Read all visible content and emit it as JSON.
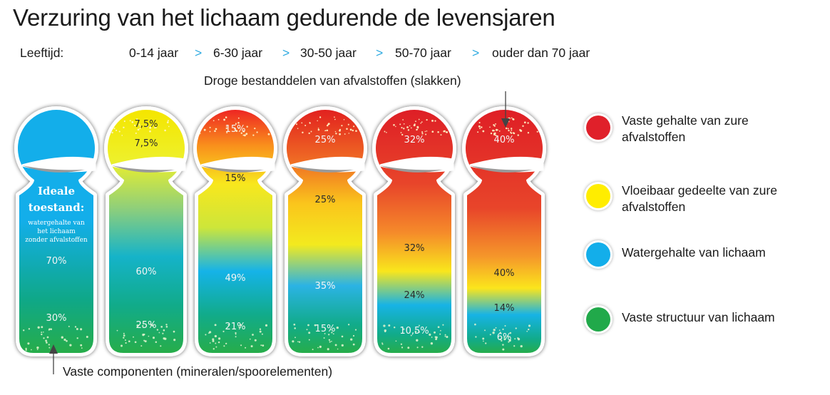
{
  "title": "Verzuring van het lichaam gedurende de levensjaren",
  "age_label": "Leeftijd:",
  "age_separator": ">",
  "age_groups": [
    "0-14 jaar",
    "6-30 jaar",
    "30-50 jaar",
    "50-70 jaar",
    "ouder dan 70 jaar"
  ],
  "top_annotation": "Droge bestanddelen van afvalstoffen (slakken)",
  "bottom_annotation": "Vaste componenten (mineralen/spoorelementen)",
  "ideal_text": {
    "line1": "Ideale",
    "line2": "toestand:",
    "sub1": "watergehalte van",
    "sub2": "het lichaam",
    "sub3": "zonder afvalstoffen"
  },
  "figures": [
    {
      "labels": [
        "70%",
        "30%"
      ]
    },
    {
      "labels": [
        "7,5%",
        "7,5%",
        "60%",
        "25%"
      ]
    },
    {
      "labels": [
        "15%",
        "15%",
        "49%",
        "21%"
      ]
    },
    {
      "labels": [
        "25%",
        "25%",
        "35%",
        "15%"
      ]
    },
    {
      "labels": [
        "32%",
        "32%",
        "24%",
        "10,5%"
      ]
    },
    {
      "labels": [
        "40%",
        "40%",
        "14%",
        "6%"
      ]
    }
  ],
  "legend": [
    {
      "color": "#e0202a",
      "line1": "Vaste gehalte van zure",
      "line2": "afvalstoffen"
    },
    {
      "color": "#ffed00",
      "line1": "Vloeibaar gedeelte van zure",
      "line2": "afvalstoffen"
    },
    {
      "color": "#13aeea",
      "line1": "Watergehalte van lichaam",
      "line2": ""
    },
    {
      "color": "#21a94a",
      "line1": "Vaste structuur van lichaam",
      "line2": ""
    }
  ]
}
